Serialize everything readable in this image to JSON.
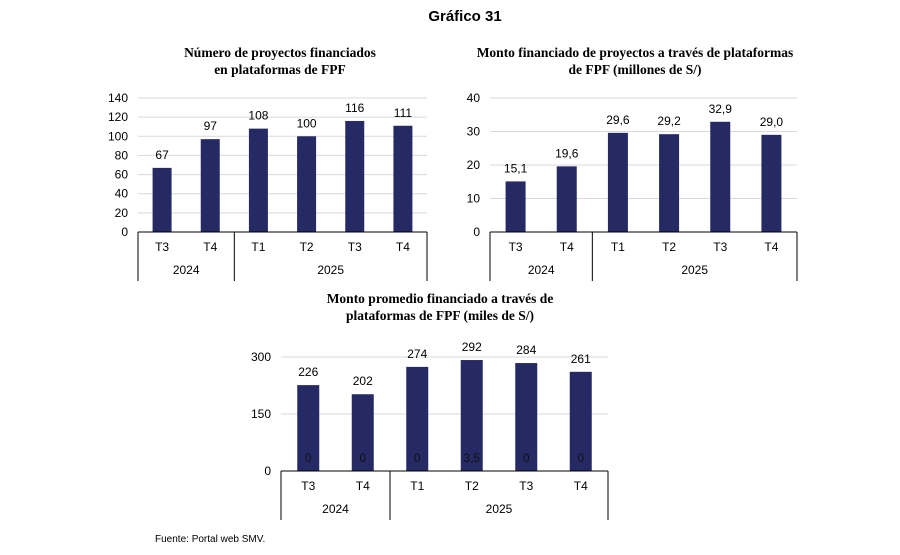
{
  "title": "Gráfico 31",
  "source": "Fuente: Portal web SMV.",
  "chart_data": [
    {
      "type": "bar",
      "title": "Número de proyectos financiados en plataformas de FPF",
      "title_lines": [
        "Número de proyectos financiados",
        "en plataformas de FPF"
      ],
      "categories": [
        "T3",
        "T4",
        "T1",
        "T2",
        "T3",
        "T4"
      ],
      "groups": [
        {
          "label": "2024",
          "count": 2
        },
        {
          "label": "2025",
          "count": 4
        }
      ],
      "values": [
        67,
        97,
        108,
        100,
        116,
        111
      ],
      "data_labels": [
        "67",
        "97",
        "108",
        "100",
        "116",
        "111"
      ],
      "ylim": [
        0,
        140
      ],
      "yticks": [
        0,
        20,
        40,
        60,
        80,
        100,
        120,
        140
      ],
      "grid": true,
      "bar_color": "#252a64"
    },
    {
      "type": "bar",
      "title": "Monto financiado de proyectos a través de plataformas de FPF (millones de S/)",
      "title_lines": [
        "Monto financiado de proyectos a través de plataformas",
        "de FPF (millones de S/)"
      ],
      "categories": [
        "T3",
        "T4",
        "T1",
        "T2",
        "T3",
        "T4"
      ],
      "groups": [
        {
          "label": "2024",
          "count": 2
        },
        {
          "label": "2025",
          "count": 4
        }
      ],
      "values": [
        15.1,
        19.6,
        29.6,
        29.2,
        32.9,
        29.0
      ],
      "data_labels": [
        "15,1",
        "19,6",
        "29,6",
        "29,2",
        "32,9",
        "29,0"
      ],
      "ylim": [
        0,
        40
      ],
      "yticks": [
        0,
        10,
        20,
        30,
        40
      ],
      "grid": true,
      "bar_color": "#252a64"
    },
    {
      "type": "bar",
      "title": "Monto promedio financiado a través de plataformas de FPF (miles de S/)",
      "title_lines": [
        "Monto promedio financiado a través de",
        "plataformas de FPF (miles de S/)"
      ],
      "categories": [
        "T3",
        "T4",
        "T1",
        "T2",
        "T3",
        "T4"
      ],
      "groups": [
        {
          "label": "2024",
          "count": 2
        },
        {
          "label": "2025",
          "count": 4
        }
      ],
      "values": [
        226,
        202,
        274,
        292,
        284,
        261
      ],
      "data_labels": [
        "226",
        "202",
        "274",
        "292",
        "284",
        "261"
      ],
      "inner_labels": [
        "0",
        "0",
        "0",
        "3,5",
        "0",
        "0"
      ],
      "ylim": [
        0,
        300
      ],
      "yticks": [
        0,
        150,
        300
      ],
      "grid": true,
      "bar_color": "#252a64"
    }
  ]
}
